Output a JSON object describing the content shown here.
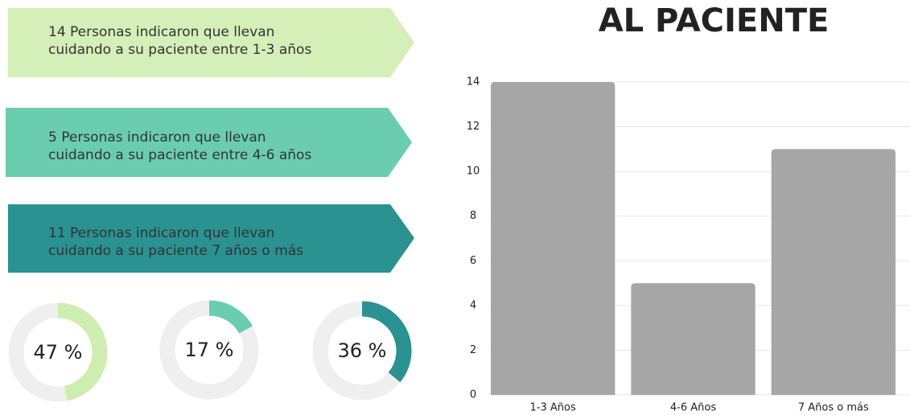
{
  "banners": [
    {
      "lines": [
        "14 Personas indicaron que llevan",
        "cuidando a su paciente entre 1-3 años"
      ]
    },
    {
      "lines": [
        "5 Personas indicaron que llevan",
        "cuidando a su paciente entre 4-6 años"
      ]
    },
    {
      "lines": [
        "11 Personas indicaron que llevan",
        "cuidando a su paciente 7 años o más"
      ]
    }
  ],
  "chart_data": [
    {
      "type": "bar",
      "title": "AL PACIENTE",
      "categories": [
        "1-3 Años",
        "4-6 Años",
        "7 Años o más"
      ],
      "values": [
        14,
        5,
        11
      ],
      "color": "#a6a6a6",
      "ylim": [
        0,
        14
      ],
      "yticks": [
        0,
        2,
        4,
        6,
        8,
        10,
        12,
        14
      ],
      "grid": true
    },
    {
      "type": "donut",
      "values": [
        47
      ],
      "value_labels": [
        "47 %"
      ],
      "color": "#cdeeb0"
    },
    {
      "type": "donut",
      "values": [
        17
      ],
      "value_labels": [
        "17 %"
      ],
      "color": "#6acdb0"
    },
    {
      "type": "donut",
      "values": [
        36
      ],
      "value_labels": [
        "36 %"
      ],
      "color": "#2a9291"
    }
  ]
}
